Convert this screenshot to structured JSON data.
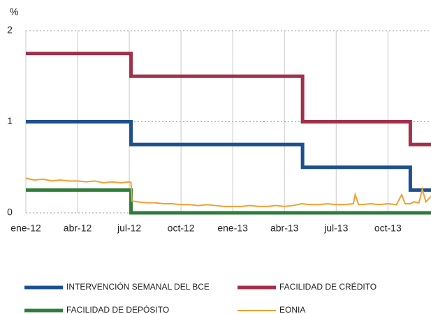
{
  "chart_data": {
    "type": "line",
    "y_unit": "%",
    "xlim": [
      0,
      23.5
    ],
    "xticks": [
      {
        "value": 0,
        "label": "ene-12"
      },
      {
        "value": 3,
        "label": "abr-12"
      },
      {
        "value": 6,
        "label": "jul-12"
      },
      {
        "value": 9,
        "label": "oct-12"
      },
      {
        "value": 12,
        "label": "ene-13"
      },
      {
        "value": 15,
        "label": "abr-13"
      },
      {
        "value": 18,
        "label": "jul-13"
      },
      {
        "value": 21,
        "label": "oct-13"
      }
    ],
    "ylim": [
      0,
      2
    ],
    "yticks": [
      0,
      1,
      2
    ],
    "grid": true,
    "series": [
      {
        "name": "INTERVENCIÓN SEMANAL DEL BCE",
        "color": "#1d4f8c",
        "x": [
          0,
          6.1,
          6.1,
          16.05,
          16.05,
          22.3,
          22.3,
          23.5
        ],
        "values": [
          1,
          1,
          0.75,
          0.75,
          0.5,
          0.5,
          0.25,
          0.25
        ]
      },
      {
        "name": "FACILIDAD DE CRÉDITO",
        "color": "#a2304a",
        "x": [
          0,
          6.1,
          6.1,
          16.05,
          16.05,
          22.3,
          22.3,
          23.5
        ],
        "values": [
          1.75,
          1.75,
          1.5,
          1.5,
          1,
          1,
          0.75,
          0.75
        ]
      },
      {
        "name": "FACILIDAD DE DEPÓSITO",
        "color": "#2f7d3a",
        "x": [
          0,
          6.1,
          6.1,
          23.5
        ],
        "values": [
          0.25,
          0.25,
          0,
          0
        ]
      },
      {
        "name": "EONIA",
        "color": "#f0a030",
        "x": [
          0,
          0.5,
          1,
          1.5,
          2,
          2.5,
          3,
          3.5,
          4,
          4.5,
          5,
          5.5,
          6,
          6.1,
          6.15,
          6.5,
          7,
          7.5,
          8,
          8.5,
          9,
          9.5,
          10,
          10.5,
          11,
          11.5,
          12,
          12.5,
          13,
          13.5,
          14,
          14.5,
          15,
          15.5,
          16,
          16.5,
          17,
          17.5,
          18,
          18.5,
          19,
          19.1,
          19.3,
          19.5,
          20,
          20.5,
          21,
          21.5,
          21.8,
          22,
          22.3,
          22.5,
          22.8,
          23,
          23.2,
          23.5
        ],
        "values": [
          0.38,
          0.36,
          0.37,
          0.35,
          0.36,
          0.35,
          0.35,
          0.34,
          0.35,
          0.33,
          0.34,
          0.33,
          0.34,
          0.33,
          0.13,
          0.12,
          0.11,
          0.11,
          0.1,
          0.1,
          0.09,
          0.09,
          0.08,
          0.09,
          0.08,
          0.07,
          0.07,
          0.07,
          0.08,
          0.07,
          0.07,
          0.08,
          0.07,
          0.08,
          0.1,
          0.09,
          0.09,
          0.1,
          0.09,
          0.09,
          0.1,
          0.2,
          0.09,
          0.09,
          0.1,
          0.09,
          0.1,
          0.09,
          0.2,
          0.1,
          0.1,
          0.12,
          0.11,
          0.26,
          0.12,
          0.18
        ]
      }
    ]
  }
}
